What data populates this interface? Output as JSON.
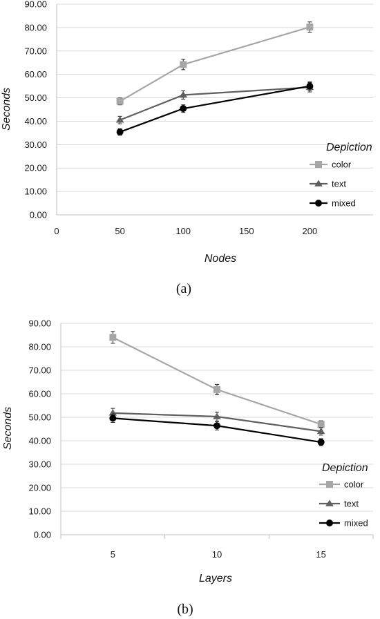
{
  "chart_data": [
    {
      "type": "line",
      "caption": "(a)",
      "xlabel": "Nodes",
      "ylabel": "Seconds",
      "x_type": "numeric",
      "xlim": [
        0,
        250
      ],
      "x_ticks": [
        "0",
        "50",
        "100",
        "150",
        "200"
      ],
      "ylim": [
        0,
        90
      ],
      "y_ticks": [
        "0.00",
        "10.00",
        "20.00",
        "30.00",
        "40.00",
        "50.00",
        "60.00",
        "70.00",
        "80.00",
        "90.00"
      ],
      "grid": true,
      "legend": {
        "title": "Depiction",
        "position": "right"
      },
      "x": [
        50,
        100,
        200
      ],
      "series": [
        {
          "name": "color",
          "color": "#a6a6a6",
          "marker": "square",
          "values": [
            48.5,
            64.2,
            80.2
          ],
          "errors": [
            1.5,
            2.2,
            2.2
          ]
        },
        {
          "name": "text",
          "color": "#5f5f5f",
          "marker": "triangle",
          "values": [
            40.5,
            51.2,
            54.5
          ],
          "errors": [
            1.6,
            1.8,
            2.0
          ]
        },
        {
          "name": "mixed",
          "color": "#000000",
          "marker": "circle",
          "values": [
            35.4,
            45.4,
            55.0
          ],
          "errors": [
            1.4,
            1.6,
            1.8
          ]
        }
      ]
    },
    {
      "type": "line",
      "caption": "(b)",
      "xlabel": "Layers",
      "ylabel": "Seconds",
      "x_type": "category",
      "categories": [
        "5",
        "10",
        "15"
      ],
      "ylim": [
        0,
        90
      ],
      "y_ticks": [
        "0.00",
        "10.00",
        "20.00",
        "30.00",
        "40.00",
        "50.00",
        "60.00",
        "70.00",
        "80.00",
        "90.00"
      ],
      "grid": true,
      "legend": {
        "title": "Depiction",
        "position": "right"
      },
      "series": [
        {
          "name": "color",
          "color": "#a6a6a6",
          "marker": "square",
          "values": [
            84.0,
            61.8,
            47.0
          ],
          "errors": [
            2.5,
            2.2,
            1.5
          ]
        },
        {
          "name": "text",
          "color": "#5f5f5f",
          "marker": "triangle",
          "values": [
            51.8,
            50.3,
            44.0
          ],
          "errors": [
            2.0,
            1.9,
            1.6
          ]
        },
        {
          "name": "mixed",
          "color": "#000000",
          "marker": "circle",
          "values": [
            49.6,
            46.4,
            39.4
          ],
          "errors": [
            1.8,
            1.8,
            1.5
          ]
        }
      ]
    }
  ]
}
